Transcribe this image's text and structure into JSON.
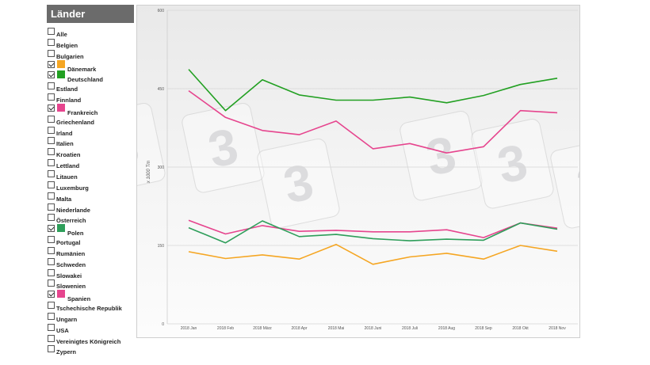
{
  "sidebar": {
    "title": "Länder",
    "countries": [
      {
        "label": "Alle",
        "checked": false,
        "color": null
      },
      {
        "label": "Belgien",
        "checked": false,
        "color": null
      },
      {
        "label": "Bulgarien",
        "checked": false,
        "color": null
      },
      {
        "label": "Dänemark",
        "checked": true,
        "color": "#f5a623"
      },
      {
        "label": "Deutschland",
        "checked": true,
        "color": "#22a022"
      },
      {
        "label": "Estland",
        "checked": false,
        "color": null
      },
      {
        "label": "Finnland",
        "checked": false,
        "color": null
      },
      {
        "label": "Frankreich",
        "checked": true,
        "color": "#e6458e"
      },
      {
        "label": "Griechenland",
        "checked": false,
        "color": null
      },
      {
        "label": "Irland",
        "checked": false,
        "color": null
      },
      {
        "label": "Italien",
        "checked": false,
        "color": null
      },
      {
        "label": "Kroatien",
        "checked": false,
        "color": null
      },
      {
        "label": "Lettland",
        "checked": false,
        "color": null
      },
      {
        "label": "Litauen",
        "checked": false,
        "color": null
      },
      {
        "label": "Luxemburg",
        "checked": false,
        "color": null
      },
      {
        "label": "Malta",
        "checked": false,
        "color": null
      },
      {
        "label": "Niederlande",
        "checked": false,
        "color": null
      },
      {
        "label": "Österreich",
        "checked": false,
        "color": null
      },
      {
        "label": "Polen",
        "checked": true,
        "color": "#2e9e5a"
      },
      {
        "label": "Portugal",
        "checked": false,
        "color": null
      },
      {
        "label": "Rumänien",
        "checked": false,
        "color": null
      },
      {
        "label": "Schweden",
        "checked": false,
        "color": null
      },
      {
        "label": "Slowakei",
        "checked": false,
        "color": null
      },
      {
        "label": "Slowenien",
        "checked": false,
        "color": null
      },
      {
        "label": "Spanien",
        "checked": true,
        "color": "#e6458e"
      },
      {
        "label": "Tschechische Republik",
        "checked": false,
        "color": null
      },
      {
        "label": "Ungarn",
        "checked": false,
        "color": null
      },
      {
        "label": "USA",
        "checked": false,
        "color": null
      },
      {
        "label": "Vereinigtes Königreich",
        "checked": false,
        "color": null
      },
      {
        "label": "Zypern",
        "checked": false,
        "color": null
      }
    ]
  },
  "chart_data": {
    "type": "line",
    "title": "",
    "xlabel": "",
    "ylabel": "x 1000 Tm",
    "ylim": [
      0,
      600
    ],
    "yticks": [
      0,
      150,
      300,
      450,
      600
    ],
    "grid": true,
    "legend": "none",
    "categories": [
      "2018 Jan",
      "2018 Feb",
      "2018 März",
      "2018 Apr",
      "2018 Mai",
      "2018 Juni",
      "2018 Juli",
      "2018 Aug",
      "2018 Sep",
      "2018 Okt",
      "2018 Nov"
    ],
    "series": [
      {
        "name": "Deutschland",
        "color": "#22a022",
        "values": [
          487,
          408,
          467,
          438,
          428,
          428,
          434,
          423,
          437,
          458,
          470
        ]
      },
      {
        "name": "Frankreich",
        "color": "#e6458e",
        "values": [
          446,
          395,
          370,
          362,
          388,
          335,
          345,
          327,
          339,
          408,
          404
        ]
      },
      {
        "name": "Spanien",
        "color": "#e6458e",
        "values": [
          198,
          172,
          188,
          177,
          179,
          176,
          176,
          180,
          165,
          193,
          183
        ]
      },
      {
        "name": "Polen",
        "color": "#2e9e5a",
        "values": [
          184,
          155,
          197,
          167,
          171,
          163,
          159,
          162,
          160,
          193,
          181
        ]
      },
      {
        "name": "Dänemark",
        "color": "#f5a623",
        "values": [
          138,
          125,
          132,
          124,
          152,
          114,
          128,
          135,
          124,
          150,
          139
        ]
      }
    ],
    "watermark": "3"
  }
}
